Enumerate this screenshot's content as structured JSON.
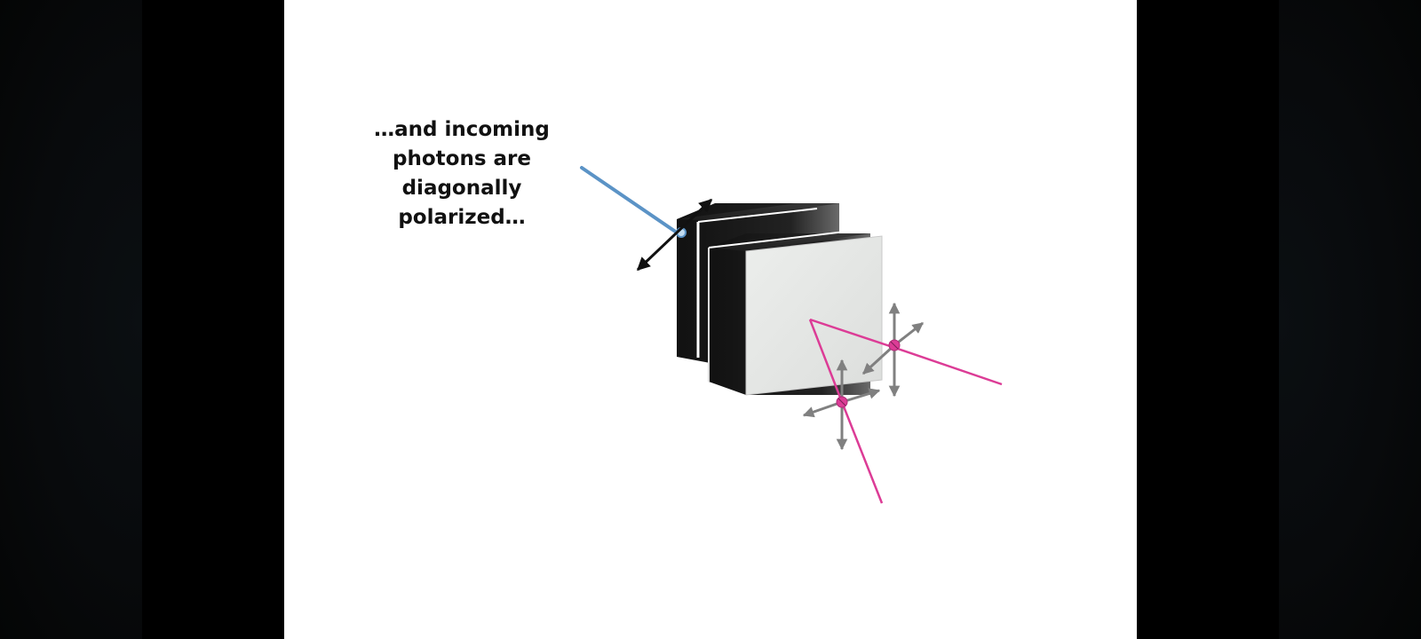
{
  "caption": {
    "lines": [
      "…and incoming",
      "photons are",
      "diagonally",
      "polarized…"
    ]
  },
  "colors": {
    "incoming_beam": "#5b93c6",
    "outgoing_beams": "#dc3c96",
    "polarization_arrows": "#808080",
    "diagonal_arrow": "#111111",
    "crystal_face": "#e6e8e6"
  }
}
